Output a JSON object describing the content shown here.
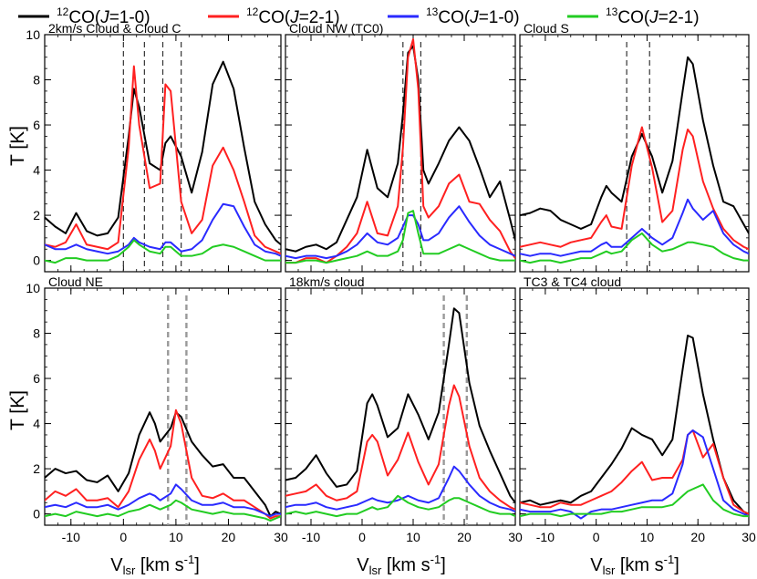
{
  "legend": [
    {
      "label_pre": "12",
      "label_main": "CO(",
      "label_j": "J",
      "label_post": "=1-0)",
      "color": "#000000"
    },
    {
      "label_pre": "12",
      "label_main": "CO(",
      "label_j": "J",
      "label_post": "=2-1)",
      "color": "#ff2020"
    },
    {
      "label_pre": "13",
      "label_main": "CO(",
      "label_j": "J",
      "label_post": "=1-0)",
      "color": "#2a2aff"
    },
    {
      "label_pre": "13",
      "label_main": "CO(",
      "label_j": "J",
      "label_post": "=2-1)",
      "color": "#22cc22"
    }
  ],
  "axes": {
    "ylabel": "T [K]",
    "xlabel_main": "V",
    "xlabel_sub": "lsr",
    "xlabel_unit": " [km s",
    "xlabel_exp": "-1",
    "xlabel_end": "]"
  },
  "chart_data": [
    {
      "type": "line",
      "title": "2km/s Cloud & Cloud C",
      "xlim": [
        -15,
        30
      ],
      "ylim": [
        -0.5,
        10
      ],
      "xticks": [
        -10,
        0,
        10,
        20,
        30
      ],
      "yticks": [
        0,
        2,
        4,
        6,
        8,
        10
      ],
      "markers": [
        0,
        4,
        7.5,
        11
      ],
      "marker_style": "black",
      "x": [
        -15,
        -13,
        -11,
        -9,
        -7,
        -5,
        -3,
        -1,
        1,
        2,
        3,
        5,
        7,
        8,
        9,
        11,
        13,
        15,
        17,
        19,
        21,
        23,
        25,
        27,
        29,
        30
      ],
      "series": [
        {
          "name": "12CO(J=1-0)",
          "color": "#000000",
          "values": [
            1.9,
            1.5,
            1.2,
            2.1,
            1.3,
            1.1,
            1.2,
            1.9,
            5.5,
            7.6,
            6.8,
            4.3,
            4.0,
            5.2,
            5.5,
            4.6,
            3.0,
            4.8,
            7.8,
            8.8,
            7.6,
            5.0,
            2.6,
            1.6,
            0.9,
            0.7
          ]
        },
        {
          "name": "12CO(J=2-1)",
          "color": "#ff2020",
          "values": [
            0.7,
            0.6,
            0.8,
            1.6,
            0.7,
            0.6,
            0.5,
            0.8,
            5.0,
            8.6,
            6.0,
            3.2,
            3.4,
            7.8,
            7.5,
            2.6,
            1.2,
            1.8,
            4.2,
            5.0,
            4.0,
            2.6,
            1.1,
            0.6,
            0.4,
            0.3
          ]
        },
        {
          "name": "13CO(J=1-0)",
          "color": "#2a2aff",
          "values": [
            0.7,
            0.5,
            0.5,
            0.7,
            0.5,
            0.4,
            0.3,
            0.4,
            0.7,
            1.0,
            0.8,
            0.6,
            0.5,
            0.8,
            0.8,
            0.4,
            0.5,
            0.9,
            1.8,
            2.5,
            2.4,
            1.5,
            0.7,
            0.4,
            0.3,
            0.2
          ]
        },
        {
          "name": "13CO(J=2-1)",
          "color": "#22cc22",
          "values": [
            0.0,
            -0.1,
            0.1,
            0.1,
            0.0,
            0.0,
            0.0,
            0.2,
            0.6,
            0.9,
            0.7,
            0.4,
            0.3,
            0.6,
            0.6,
            0.2,
            0.2,
            0.3,
            0.6,
            0.7,
            0.6,
            0.4,
            0.2,
            0.0,
            0.0,
            0.0
          ]
        }
      ]
    },
    {
      "type": "line",
      "title": "Cloud NW (TC0)",
      "xlim": [
        -15,
        30
      ],
      "ylim": [
        -0.5,
        10
      ],
      "xticks": [
        -10,
        0,
        10,
        20,
        30
      ],
      "yticks": [
        0,
        2,
        4,
        6,
        8,
        10
      ],
      "markers": [
        8,
        11.5
      ],
      "marker_style": "black",
      "x": [
        -15,
        -13,
        -11,
        -9,
        -7,
        -5,
        -3,
        -1,
        1,
        3,
        5,
        7,
        8,
        9,
        10,
        11,
        12,
        13,
        15,
        17,
        19,
        21,
        23,
        25,
        27,
        29,
        30
      ],
      "series": [
        {
          "name": "12CO(J=1-0)",
          "color": "#000000",
          "values": [
            0.5,
            0.4,
            0.6,
            0.7,
            0.5,
            0.8,
            1.8,
            2.8,
            4.9,
            3.2,
            2.8,
            4.3,
            6.5,
            9.2,
            9.5,
            8.0,
            4.0,
            3.4,
            4.3,
            5.3,
            5.9,
            5.3,
            4.1,
            2.8,
            3.5,
            1.8,
            0.9
          ]
        },
        {
          "name": "12CO(J=2-1)",
          "color": "#ff2020",
          "values": [
            -0.1,
            -0.1,
            0.1,
            0.1,
            -0.1,
            0.2,
            0.6,
            1.2,
            2.6,
            1.2,
            1.1,
            2.4,
            5.0,
            9.0,
            9.8,
            7.6,
            2.4,
            1.9,
            2.4,
            3.4,
            3.8,
            2.6,
            2.5,
            1.8,
            1.3,
            0.4,
            0.1
          ]
        },
        {
          "name": "13CO(J=1-0)",
          "color": "#2a2aff",
          "values": [
            0.2,
            0.1,
            0.2,
            0.2,
            0.1,
            0.2,
            0.4,
            0.7,
            1.2,
            0.8,
            0.7,
            1.0,
            1.5,
            2.0,
            2.0,
            1.6,
            0.9,
            0.9,
            1.2,
            1.9,
            2.4,
            1.7,
            1.1,
            0.7,
            0.5,
            0.3,
            0.2
          ]
        },
        {
          "name": "13CO(J=2-1)",
          "color": "#22cc22",
          "values": [
            -0.1,
            -0.1,
            0.0,
            0.0,
            -0.1,
            0.0,
            0.1,
            0.2,
            0.4,
            0.2,
            0.2,
            0.4,
            0.9,
            2.1,
            2.2,
            1.2,
            0.3,
            0.3,
            0.3,
            0.5,
            0.7,
            0.5,
            0.3,
            0.1,
            0.0,
            0.0,
            0.0
          ]
        }
      ]
    },
    {
      "type": "line",
      "title": "Cloud S",
      "xlim": [
        -15,
        30
      ],
      "ylim": [
        -0.5,
        10
      ],
      "xticks": [
        -10,
        0,
        10,
        20,
        30
      ],
      "yticks": [
        0,
        2,
        4,
        6,
        8,
        10
      ],
      "markers": [
        6,
        10.5
      ],
      "marker_style": "black",
      "x": [
        -15,
        -13,
        -11,
        -9,
        -7,
        -5,
        -3,
        -1,
        1,
        2,
        3,
        5,
        7,
        9,
        11,
        13,
        15,
        17,
        18,
        19,
        21,
        23,
        25,
        27,
        29,
        30
      ],
      "series": [
        {
          "name": "12CO(J=1-0)",
          "color": "#000000",
          "values": [
            2.0,
            2.1,
            2.3,
            2.2,
            1.8,
            1.6,
            1.4,
            1.6,
            2.8,
            3.3,
            3.0,
            2.6,
            4.6,
            5.6,
            4.6,
            3.0,
            4.4,
            7.5,
            9.0,
            8.7,
            6.2,
            4.2,
            2.6,
            2.4,
            1.6,
            1.2
          ]
        },
        {
          "name": "12CO(J=2-1)",
          "color": "#ff2020",
          "values": [
            0.6,
            0.7,
            0.8,
            0.7,
            0.6,
            0.8,
            0.9,
            1.0,
            1.7,
            2.0,
            1.5,
            1.4,
            4.2,
            5.9,
            4.1,
            1.7,
            2.2,
            4.9,
            5.8,
            5.5,
            3.5,
            2.3,
            1.4,
            0.9,
            0.6,
            0.5
          ]
        },
        {
          "name": "13CO(J=1-0)",
          "color": "#2a2aff",
          "values": [
            0.3,
            0.2,
            0.3,
            0.3,
            0.2,
            0.3,
            0.4,
            0.4,
            0.7,
            0.8,
            0.6,
            0.6,
            1.0,
            1.4,
            1.0,
            0.7,
            1.0,
            2.1,
            2.7,
            2.3,
            1.8,
            2.2,
            1.2,
            0.7,
            0.4,
            0.3
          ]
        },
        {
          "name": "13CO(J=2-1)",
          "color": "#22cc22",
          "values": [
            0.0,
            -0.1,
            0.0,
            0.0,
            -0.1,
            0.0,
            0.1,
            0.1,
            0.3,
            0.4,
            0.3,
            0.4,
            0.9,
            1.2,
            0.7,
            0.4,
            0.5,
            0.7,
            0.8,
            0.8,
            0.7,
            0.6,
            0.3,
            0.1,
            0.0,
            0.0
          ]
        }
      ]
    },
    {
      "type": "line",
      "title": "Cloud NE",
      "xlim": [
        -15,
        30
      ],
      "ylim": [
        -0.5,
        10
      ],
      "xticks": [
        -10,
        0,
        10,
        20,
        30
      ],
      "yticks": [
        0,
        2,
        4,
        6,
        8,
        10
      ],
      "markers": [
        8.5,
        12
      ],
      "marker_style": "gray",
      "x": [
        -15,
        -13,
        -11,
        -9,
        -7,
        -5,
        -3,
        -1,
        1,
        3,
        5,
        6,
        7,
        9,
        10,
        11,
        13,
        15,
        17,
        19,
        21,
        23,
        25,
        27,
        28,
        29,
        30
      ],
      "series": [
        {
          "name": "12CO(J=1-0)",
          "color": "#000000",
          "values": [
            1.6,
            2.0,
            1.8,
            1.9,
            1.5,
            1.4,
            1.7,
            1.0,
            1.8,
            3.5,
            4.5,
            4.0,
            3.2,
            3.8,
            4.5,
            4.3,
            3.2,
            2.6,
            2.1,
            2.2,
            1.6,
            1.6,
            1.0,
            0.4,
            -0.1,
            0.1,
            0.0
          ]
        },
        {
          "name": "12CO(J=2-1)",
          "color": "#ff2020",
          "values": [
            0.6,
            1.0,
            0.8,
            1.1,
            0.6,
            0.6,
            0.7,
            0.3,
            1.0,
            2.4,
            3.3,
            2.8,
            2.0,
            3.0,
            4.6,
            4.0,
            1.6,
            0.8,
            0.7,
            0.9,
            0.6,
            0.6,
            0.3,
            0.0,
            -0.2,
            -0.1,
            -0.1
          ]
        },
        {
          "name": "13CO(J=1-0)",
          "color": "#2a2aff",
          "values": [
            0.3,
            0.4,
            0.3,
            0.5,
            0.3,
            0.3,
            0.4,
            0.2,
            0.4,
            0.7,
            0.9,
            0.8,
            0.6,
            0.9,
            1.3,
            1.1,
            0.6,
            0.4,
            0.4,
            0.5,
            0.3,
            0.3,
            0.2,
            0.0,
            -0.1,
            0.0,
            0.0
          ]
        },
        {
          "name": "13CO(J=2-1)",
          "color": "#22cc22",
          "values": [
            -0.1,
            0.0,
            -0.1,
            0.1,
            0.0,
            -0.1,
            0.0,
            -0.1,
            0.1,
            0.2,
            0.4,
            0.3,
            0.2,
            0.4,
            0.6,
            0.5,
            0.2,
            0.1,
            0.0,
            0.1,
            0.0,
            0.0,
            -0.1,
            -0.2,
            -0.3,
            -0.2,
            -0.1
          ]
        }
      ]
    },
    {
      "type": "line",
      "title": "18km/s cloud",
      "xlim": [
        -15,
        30
      ],
      "ylim": [
        -0.5,
        10
      ],
      "xticks": [
        -10,
        0,
        10,
        20,
        30
      ],
      "yticks": [
        0,
        2,
        4,
        6,
        8,
        10
      ],
      "markers": [
        16,
        20.5
      ],
      "marker_style": "gray",
      "x": [
        -15,
        -13,
        -11,
        -9,
        -7,
        -5,
        -3,
        -1,
        1,
        2,
        3,
        5,
        7,
        9,
        11,
        13,
        15,
        17,
        18,
        19,
        21,
        23,
        25,
        27,
        29,
        30
      ],
      "series": [
        {
          "name": "12CO(J=1-0)",
          "color": "#000000",
          "values": [
            1.5,
            1.6,
            2.0,
            2.6,
            1.8,
            1.2,
            1.3,
            1.9,
            4.9,
            5.3,
            4.8,
            3.4,
            3.8,
            5.3,
            4.4,
            3.3,
            4.5,
            7.5,
            9.1,
            8.9,
            5.8,
            3.9,
            2.8,
            1.8,
            0.8,
            0.5
          ]
        },
        {
          "name": "12CO(J=2-1)",
          "color": "#ff2020",
          "values": [
            0.8,
            0.9,
            1.0,
            1.3,
            0.8,
            0.6,
            0.7,
            1.0,
            3.2,
            3.5,
            3.2,
            1.7,
            2.4,
            3.6,
            2.3,
            1.3,
            2.2,
            4.8,
            5.7,
            5.2,
            3.0,
            1.6,
            1.0,
            0.6,
            0.3,
            0.2
          ]
        },
        {
          "name": "13CO(J=1-0)",
          "color": "#2a2aff",
          "values": [
            0.3,
            0.4,
            0.4,
            0.5,
            0.3,
            0.2,
            0.3,
            0.4,
            0.6,
            0.7,
            0.6,
            0.5,
            0.6,
            0.8,
            0.6,
            0.5,
            0.7,
            1.6,
            2.1,
            1.9,
            1.3,
            0.8,
            0.5,
            0.3,
            0.2,
            0.1
          ]
        },
        {
          "name": "13CO(J=2-1)",
          "color": "#22cc22",
          "values": [
            0.0,
            0.1,
            0.0,
            0.1,
            0.0,
            -0.1,
            0.0,
            0.0,
            0.2,
            0.3,
            0.2,
            0.3,
            0.8,
            0.5,
            0.3,
            0.2,
            0.3,
            0.6,
            0.7,
            0.7,
            0.5,
            0.3,
            0.1,
            0.0,
            0.0,
            -0.1
          ]
        }
      ]
    },
    {
      "type": "line",
      "title": "TC3 & TC4 cloud",
      "xlim": [
        -15,
        30
      ],
      "ylim": [
        -0.5,
        10
      ],
      "xticks": [
        -10,
        0,
        10,
        20,
        30
      ],
      "yticks": [
        0,
        2,
        4,
        6,
        8,
        10
      ],
      "markers": [],
      "marker_style": "none",
      "x": [
        -15,
        -13,
        -11,
        -9,
        -7,
        -5,
        -3,
        -1,
        1,
        3,
        5,
        7,
        9,
        11,
        13,
        15,
        17,
        18,
        19,
        21,
        23,
        25,
        27,
        29,
        30
      ],
      "series": [
        {
          "name": "12CO(J=1-0)",
          "color": "#000000",
          "values": [
            0.5,
            0.6,
            0.4,
            0.5,
            0.6,
            0.5,
            0.8,
            1.0,
            1.6,
            2.2,
            2.9,
            3.8,
            3.5,
            3.3,
            2.6,
            3.3,
            6.4,
            7.9,
            7.8,
            5.3,
            3.3,
            1.6,
            0.6,
            0.1,
            0.0
          ]
        },
        {
          "name": "12CO(J=2-1)",
          "color": "#ff2020",
          "values": [
            0.5,
            0.4,
            0.3,
            0.3,
            0.5,
            0.4,
            0.4,
            0.6,
            0.8,
            1.0,
            1.4,
            1.9,
            2.3,
            1.5,
            1.6,
            1.6,
            2.4,
            3.5,
            3.7,
            2.5,
            3.1,
            1.6,
            0.4,
            0.1,
            0.0
          ]
        },
        {
          "name": "13CO(J=1-0)",
          "color": "#2a2aff",
          "values": [
            0.2,
            0.1,
            0.1,
            0.1,
            0.2,
            0.1,
            -0.2,
            0.1,
            0.2,
            0.2,
            0.3,
            0.4,
            0.5,
            0.6,
            0.6,
            0.9,
            2.2,
            3.5,
            3.7,
            3.4,
            2.0,
            0.6,
            0.2,
            0.0,
            -0.1
          ]
        },
        {
          "name": "13CO(J=2-1)",
          "color": "#22cc22",
          "values": [
            -0.1,
            0.0,
            0.0,
            0.0,
            -0.1,
            0.0,
            0.0,
            0.0,
            0.0,
            0.1,
            0.1,
            0.2,
            0.3,
            0.3,
            0.3,
            0.4,
            0.8,
            1.0,
            1.1,
            1.3,
            0.6,
            0.2,
            0.0,
            -0.1,
            -0.1
          ]
        }
      ]
    }
  ]
}
